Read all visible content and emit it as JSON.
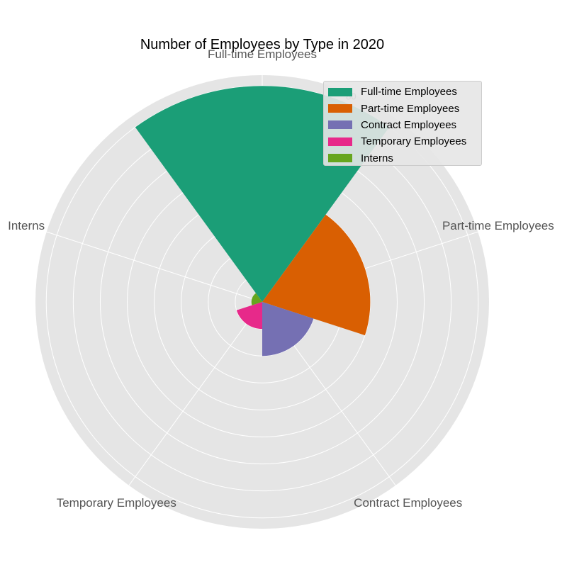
{
  "chart_data": {
    "type": "polar-bar",
    "title": "Number of Employees by Type in 2020",
    "categories": [
      "Full-time Employees",
      "Part-time Employees",
      "Contract Employees",
      "Temporary Employees",
      "Interns"
    ],
    "values": [
      80,
      40,
      20,
      10,
      4
    ],
    "colors": [
      "#1b9e77",
      "#d95f02",
      "#7570b3",
      "#e7298a",
      "#66a61e"
    ],
    "r_ticks": [
      10,
      20,
      30,
      40,
      50,
      60,
      70,
      80
    ],
    "r_tick_label_shown": "80",
    "r_max": 84,
    "grid": true,
    "background": "#e5e5e5",
    "legend_position": "top-right"
  },
  "legend": [
    {
      "label": "Full-time Employees",
      "color": "#1b9e77"
    },
    {
      "label": "Part-time Employees",
      "color": "#d95f02"
    },
    {
      "label": "Contract Employees",
      "color": "#7570b3"
    },
    {
      "label": "Temporary Employees",
      "color": "#e7298a"
    },
    {
      "label": "Interns",
      "color": "#66a61e"
    }
  ]
}
